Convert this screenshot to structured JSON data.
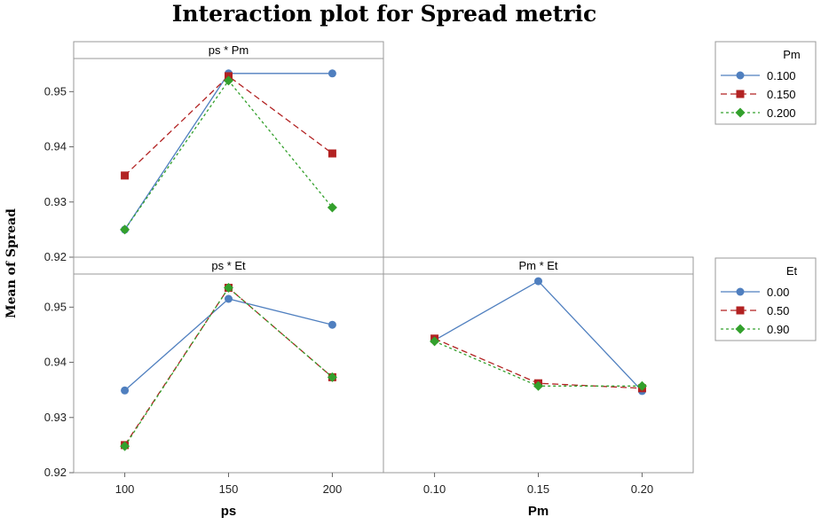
{
  "chart_data": {
    "type": "line",
    "title": "Interaction plot for Spread metric",
    "ylabel": "Mean of Spread",
    "ylim": [
      0.92,
      0.956
    ],
    "yticks": [
      "0.92",
      "0.93",
      "0.94",
      "0.95"
    ],
    "colors": {
      "series1": "#4f7fbf",
      "series2": "#b22222",
      "series3": "#33a02c"
    },
    "markers": {
      "series1": "circle",
      "series2": "square",
      "series3": "diamond"
    },
    "legends": [
      {
        "title": "Pm",
        "entries": [
          "0.100",
          "0.150",
          "0.200"
        ]
      },
      {
        "title": "Et",
        "entries": [
          "0.00",
          "0.50",
          "0.90"
        ]
      }
    ],
    "panels": [
      {
        "strip": "ps * Pm",
        "categories": [
          "100",
          "150",
          "200"
        ],
        "series": [
          {
            "name": "0.100",
            "values": [
              0.925,
              0.9533,
              0.9533
            ]
          },
          {
            "name": "0.150",
            "values": [
              0.9348,
              0.9528,
              0.9388
            ]
          },
          {
            "name": "0.200",
            "values": [
              0.925,
              0.952,
              0.929
            ]
          }
        ]
      },
      {
        "strip": "ps * Et",
        "categories": [
          "100",
          "150",
          "200"
        ],
        "xlabel": "ps",
        "series": [
          {
            "name": "0.00",
            "values": [
              0.9349,
              0.9515,
              0.9468
            ]
          },
          {
            "name": "0.50",
            "values": [
              0.925,
              0.9535,
              0.9373
            ]
          },
          {
            "name": "0.90",
            "values": [
              0.9248,
              0.9535,
              0.9373
            ]
          }
        ]
      },
      {
        "strip": "Pm * Et",
        "categories": [
          "0.10",
          "0.15",
          "0.20"
        ],
        "xlabel": "Pm",
        "series": [
          {
            "name": "0.00",
            "values": [
              0.944,
              0.9547,
              0.9348
            ]
          },
          {
            "name": "0.50",
            "values": [
              0.9443,
              0.9362,
              0.9353
            ]
          },
          {
            "name": "0.90",
            "values": [
              0.9438,
              0.9357,
              0.9357
            ]
          }
        ]
      }
    ]
  }
}
